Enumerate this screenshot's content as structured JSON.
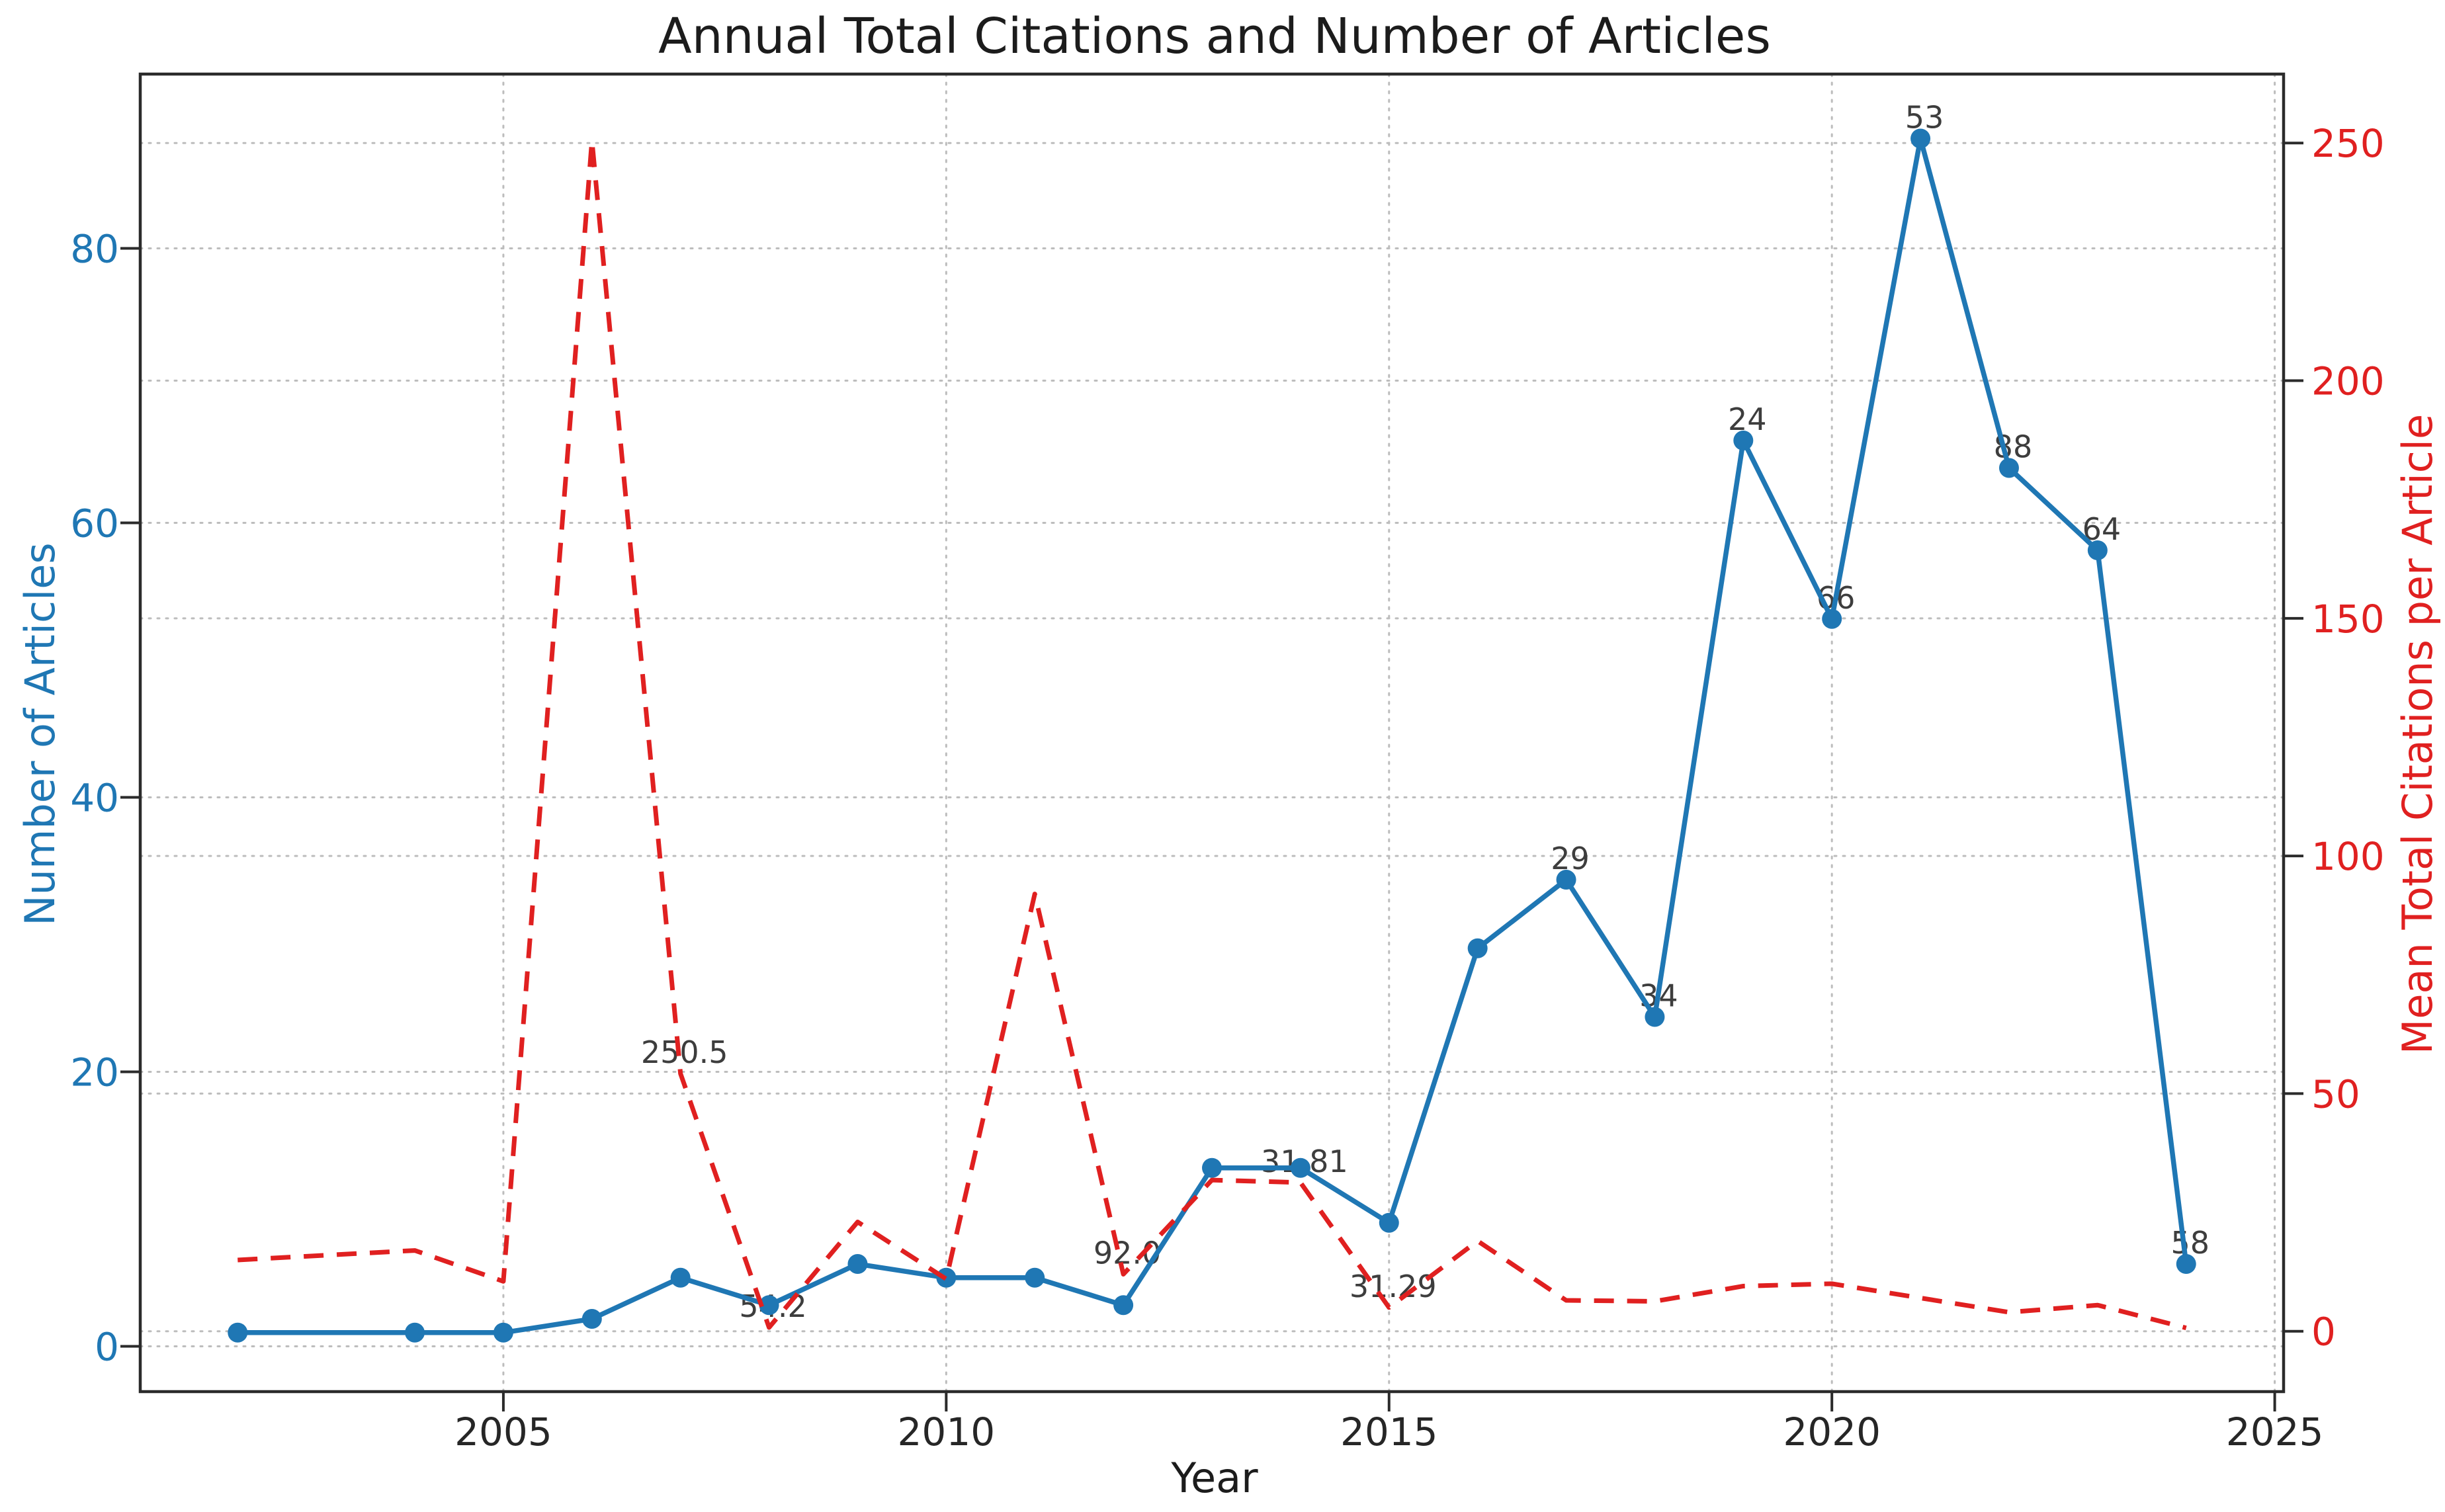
{
  "chart_data": {
    "type": "line",
    "title": "Annual Total Citations and Number of Articles",
    "xlabel": "Year",
    "ylabel_left": "Number of Articles",
    "ylabel_right": "Mean Total Citations per Article",
    "grid": true,
    "legend_position": "none",
    "x": [
      2002,
      2004,
      2005,
      2006,
      2007,
      2008,
      2009,
      2010,
      2011,
      2012,
      2013,
      2014,
      2015,
      2016,
      2017,
      2018,
      2019,
      2020,
      2021,
      2022,
      2023,
      2024
    ],
    "series": [
      {
        "name": "Number of Articles",
        "axis": "left",
        "color": "#1f77b4",
        "line_style": "solid",
        "markers": true,
        "values": [
          1,
          1,
          1,
          2,
          5,
          3,
          6,
          5,
          5,
          3,
          13,
          13,
          9,
          29,
          34,
          24,
          66,
          53,
          88,
          64,
          58,
          6
        ]
      },
      {
        "name": "Mean Total Citations per Article",
        "axis": "right",
        "color": "#e02020",
        "line_style": "dashed",
        "markers": false,
        "values": [
          15,
          17,
          10.5,
          250.5,
          54.2,
          0.8,
          23,
          11,
          92.0,
          12,
          31.81,
          31.29,
          5,
          19,
          6.5,
          6.3,
          9.5,
          10,
          7,
          4,
          5.5,
          0.7
        ]
      }
    ],
    "axes": {
      "x": {
        "ticks": [
          2005,
          2010,
          2015,
          2020,
          2025
        ],
        "range": [
          2000.9,
          2025.1
        ],
        "tick_color": "#262626"
      },
      "left": {
        "ticks": [
          0,
          20,
          40,
          60,
          80
        ],
        "range": [
          -3.3,
          92.7
        ],
        "tick_color": "#1f77b4"
      },
      "right": {
        "ticks": [
          0,
          50,
          100,
          150,
          200,
          250
        ],
        "range": [
          -12.7,
          264.5
        ],
        "tick_color": "#e02020"
      }
    },
    "annotations": [
      {
        "text": "250.5",
        "year": 2007,
        "series": "citations"
      },
      {
        "text": "54.2",
        "year": 2008,
        "series": "citations"
      },
      {
        "text": "92.0",
        "year": 2012,
        "series": "citations"
      },
      {
        "text": "31.81",
        "year": 2014,
        "series": "citations"
      },
      {
        "text": "31.29",
        "year": 2015,
        "series": "citations"
      },
      {
        "text": "29",
        "year": 2017,
        "series": "articles"
      },
      {
        "text": "34",
        "year": 2018,
        "series": "articles"
      },
      {
        "text": "24",
        "year": 2019,
        "series": "articles"
      },
      {
        "text": "66",
        "year": 2020,
        "series": "articles"
      },
      {
        "text": "53",
        "year": 2021,
        "series": "articles"
      },
      {
        "text": "88",
        "year": 2022,
        "series": "articles"
      },
      {
        "text": "64",
        "year": 2023,
        "series": "articles"
      },
      {
        "text": "58",
        "year": 2024,
        "series": "articles"
      }
    ],
    "colors": {
      "articles": "#1f77b4",
      "citations": "#e02020",
      "grid": "#bdbdbd",
      "spine": "#2b2b2b",
      "annotation_text": "#3d3d3d"
    }
  }
}
